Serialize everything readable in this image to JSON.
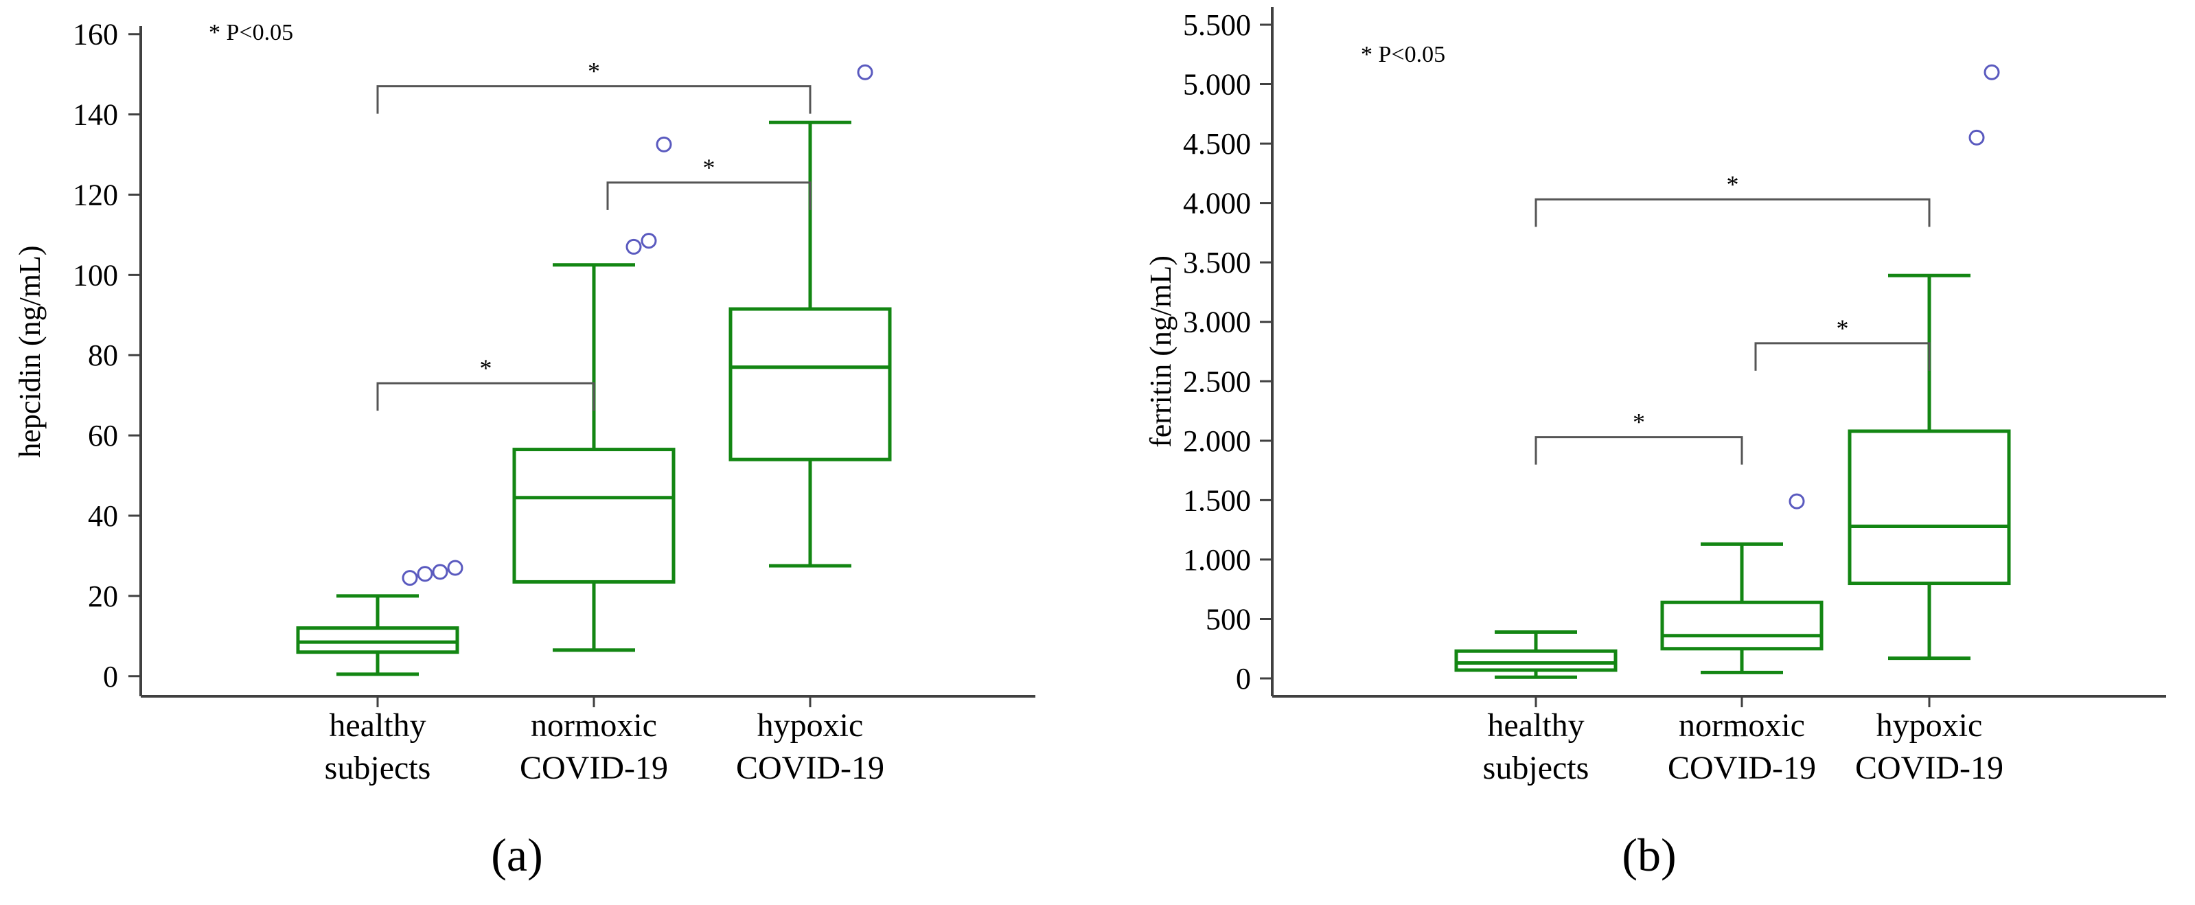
{
  "colors": {
    "box": "#138613",
    "outlier": "#5a5abf",
    "bracket": "#555555",
    "axis": "#404040"
  },
  "chart_data": [
    {
      "type": "box",
      "panel_label": "(a)",
      "ylabel": "hepcidin (ng/mL)",
      "note": "* P<0.05",
      "ylim": [
        -5,
        162
      ],
      "yticks": [
        0,
        20,
        40,
        60,
        80,
        100,
        120,
        140,
        160
      ],
      "ytick_labels": [
        "0",
        "20",
        "40",
        "60",
        "80",
        "100",
        "120",
        "140",
        "160"
      ],
      "categories": [
        [
          "healthy",
          "subjects"
        ],
        [
          "normoxic",
          "COVID-19"
        ],
        [
          "hypoxic",
          "COVID-19"
        ]
      ],
      "boxes": [
        {
          "whisker_low": 0.5,
          "q1": 6,
          "median": 8.5,
          "q3": 12,
          "whisker_high": 20,
          "outliers": [
            24.5,
            25.5,
            26,
            27
          ]
        },
        {
          "whisker_low": 6.5,
          "q1": 23.5,
          "median": 44.5,
          "q3": 56.5,
          "whisker_high": 102.5,
          "outliers": [
            107,
            108.5,
            132.5
          ]
        },
        {
          "whisker_low": 27.5,
          "q1": 54,
          "median": 77,
          "q3": 91.5,
          "whisker_high": 138,
          "outliers": [
            150.5
          ]
        }
      ],
      "significance": [
        {
          "from": 0,
          "to": 1,
          "y": 73,
          "label": "*"
        },
        {
          "from": 1,
          "to": 2,
          "y": 123,
          "label": "*"
        },
        {
          "from": 0,
          "to": 2,
          "y": 147,
          "label": "*"
        }
      ]
    },
    {
      "type": "box",
      "panel_label": "(b)",
      "ylabel": "ferritin (ng/mL)",
      "note": "* P<0.05",
      "ylim": [
        -150,
        5650
      ],
      "yticks": [
        0,
        500,
        1000,
        1500,
        2000,
        2500,
        3000,
        3500,
        4000,
        4500,
        5000,
        5500
      ],
      "ytick_labels": [
        "0",
        "500",
        "1.000",
        "1.500",
        "2.000",
        "2.500",
        "3.000",
        "3.500",
        "4.000",
        "4.500",
        "5.000",
        "5.500"
      ],
      "categories": [
        [
          "healthy",
          "subjects"
        ],
        [
          "normoxic",
          "COVID-19"
        ],
        [
          "hypoxic",
          "COVID-19"
        ]
      ],
      "boxes": [
        {
          "whisker_low": 10,
          "q1": 70,
          "median": 130,
          "q3": 230,
          "whisker_high": 390,
          "outliers": []
        },
        {
          "whisker_low": 50,
          "q1": 250,
          "median": 360,
          "q3": 640,
          "whisker_high": 1130,
          "outliers": [
            1490
          ]
        },
        {
          "whisker_low": 170,
          "q1": 800,
          "median": 1280,
          "q3": 2080,
          "whisker_high": 3390,
          "outliers": [
            4550,
            5100
          ]
        }
      ],
      "significance": [
        {
          "from": 0,
          "to": 1,
          "y": 2030,
          "label": "*"
        },
        {
          "from": 1,
          "to": 2,
          "y": 2820,
          "label": "*"
        },
        {
          "from": 0,
          "to": 2,
          "y": 4030,
          "label": "*"
        }
      ]
    }
  ]
}
